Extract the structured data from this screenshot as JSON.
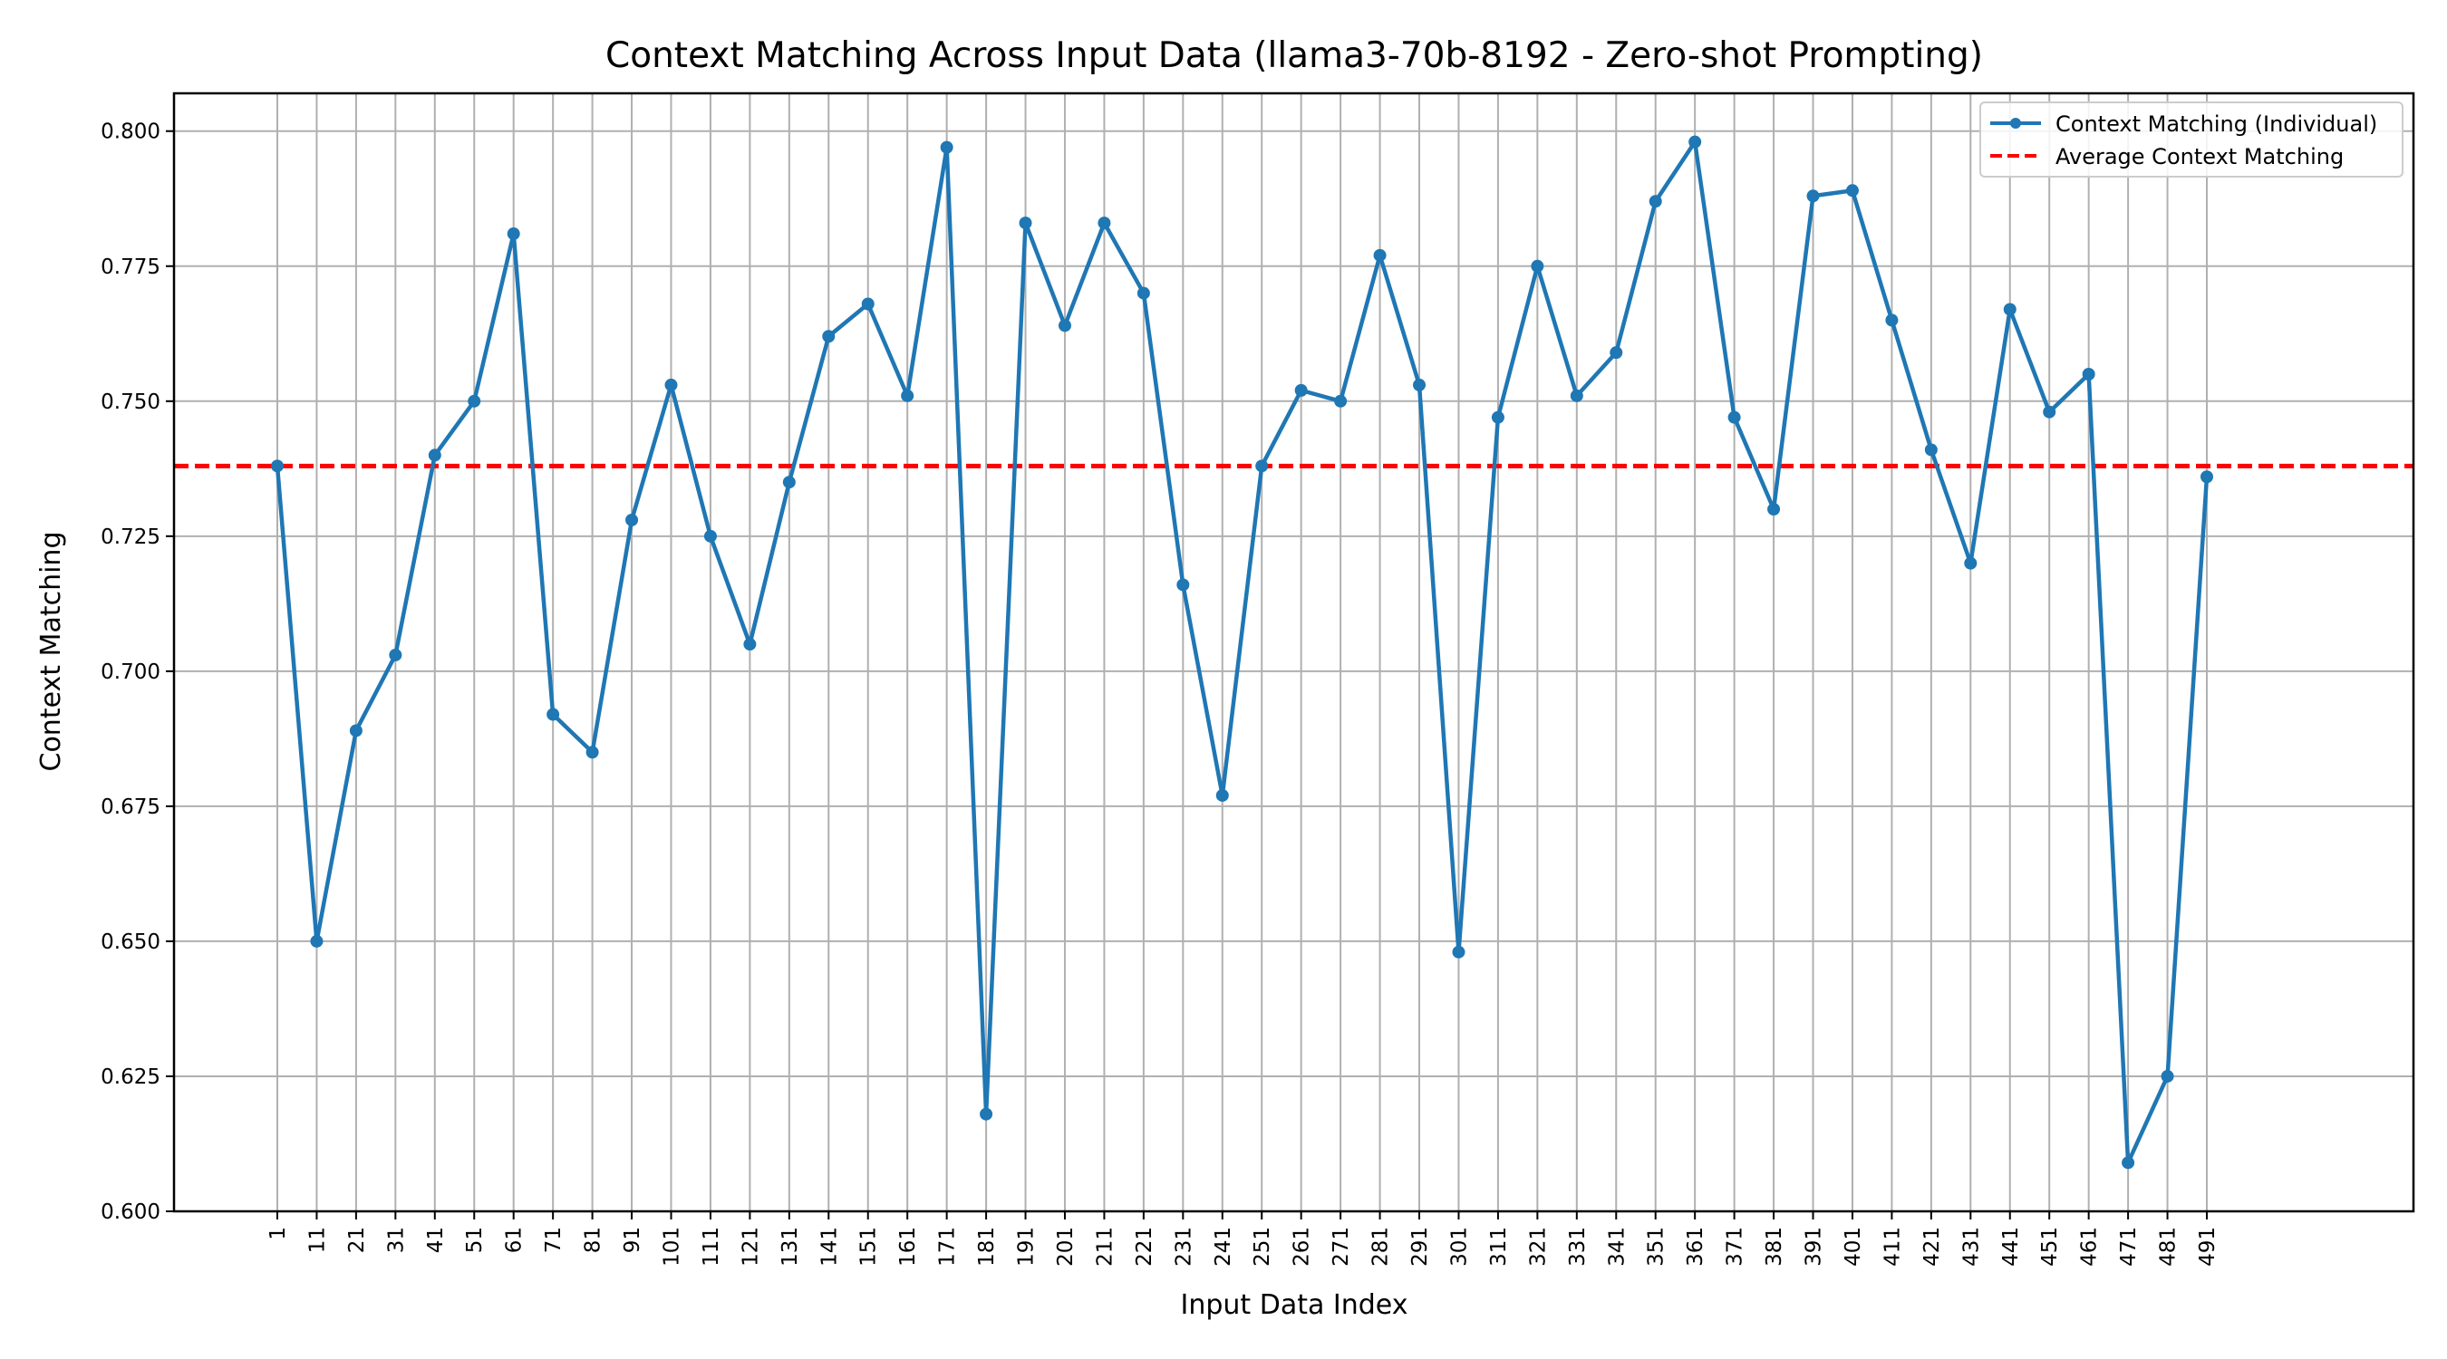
{
  "chart_data": {
    "type": "line",
    "title": "Context Matching Across Input Data (llama3-70b-8192 - Zero-shot Prompting)",
    "xlabel": "Input Data Index",
    "ylabel": "Context Matching",
    "ylim": [
      0.6,
      0.807
    ],
    "y_ticks": [
      0.6,
      0.625,
      0.65,
      0.675,
      0.7,
      0.725,
      0.75,
      0.775,
      0.8
    ],
    "grid": true,
    "legend_position": "top-right",
    "x": [
      1,
      11,
      21,
      31,
      41,
      51,
      61,
      71,
      81,
      91,
      101,
      111,
      121,
      131,
      141,
      151,
      161,
      171,
      181,
      191,
      201,
      211,
      221,
      231,
      241,
      251,
      261,
      271,
      281,
      291,
      301,
      311,
      321,
      331,
      341,
      351,
      361,
      371,
      381,
      391,
      401,
      411,
      421,
      431,
      441,
      451,
      461,
      471,
      481,
      491
    ],
    "series": [
      {
        "name": "Context Matching (Individual)",
        "color": "#1f77b4",
        "style": "line-with-markers",
        "values": [
          0.738,
          0.65,
          0.689,
          0.703,
          0.74,
          0.75,
          0.781,
          0.692,
          0.685,
          0.728,
          0.753,
          0.725,
          0.705,
          0.735,
          0.762,
          0.768,
          0.751,
          0.797,
          0.618,
          0.783,
          0.764,
          0.783,
          0.77,
          0.716,
          0.677,
          0.738,
          0.752,
          0.75,
          0.777,
          0.753,
          0.648,
          0.747,
          0.775,
          0.751,
          0.759,
          0.787,
          0.798,
          0.747,
          0.73,
          0.788,
          0.789,
          0.765,
          0.741,
          0.72,
          0.767,
          0.748,
          0.755,
          0.609,
          0.625,
          0.736
        ]
      },
      {
        "name": "Average Context Matching",
        "color": "#ff0000",
        "style": "dashed-horizontal",
        "value": 0.738
      }
    ]
  }
}
